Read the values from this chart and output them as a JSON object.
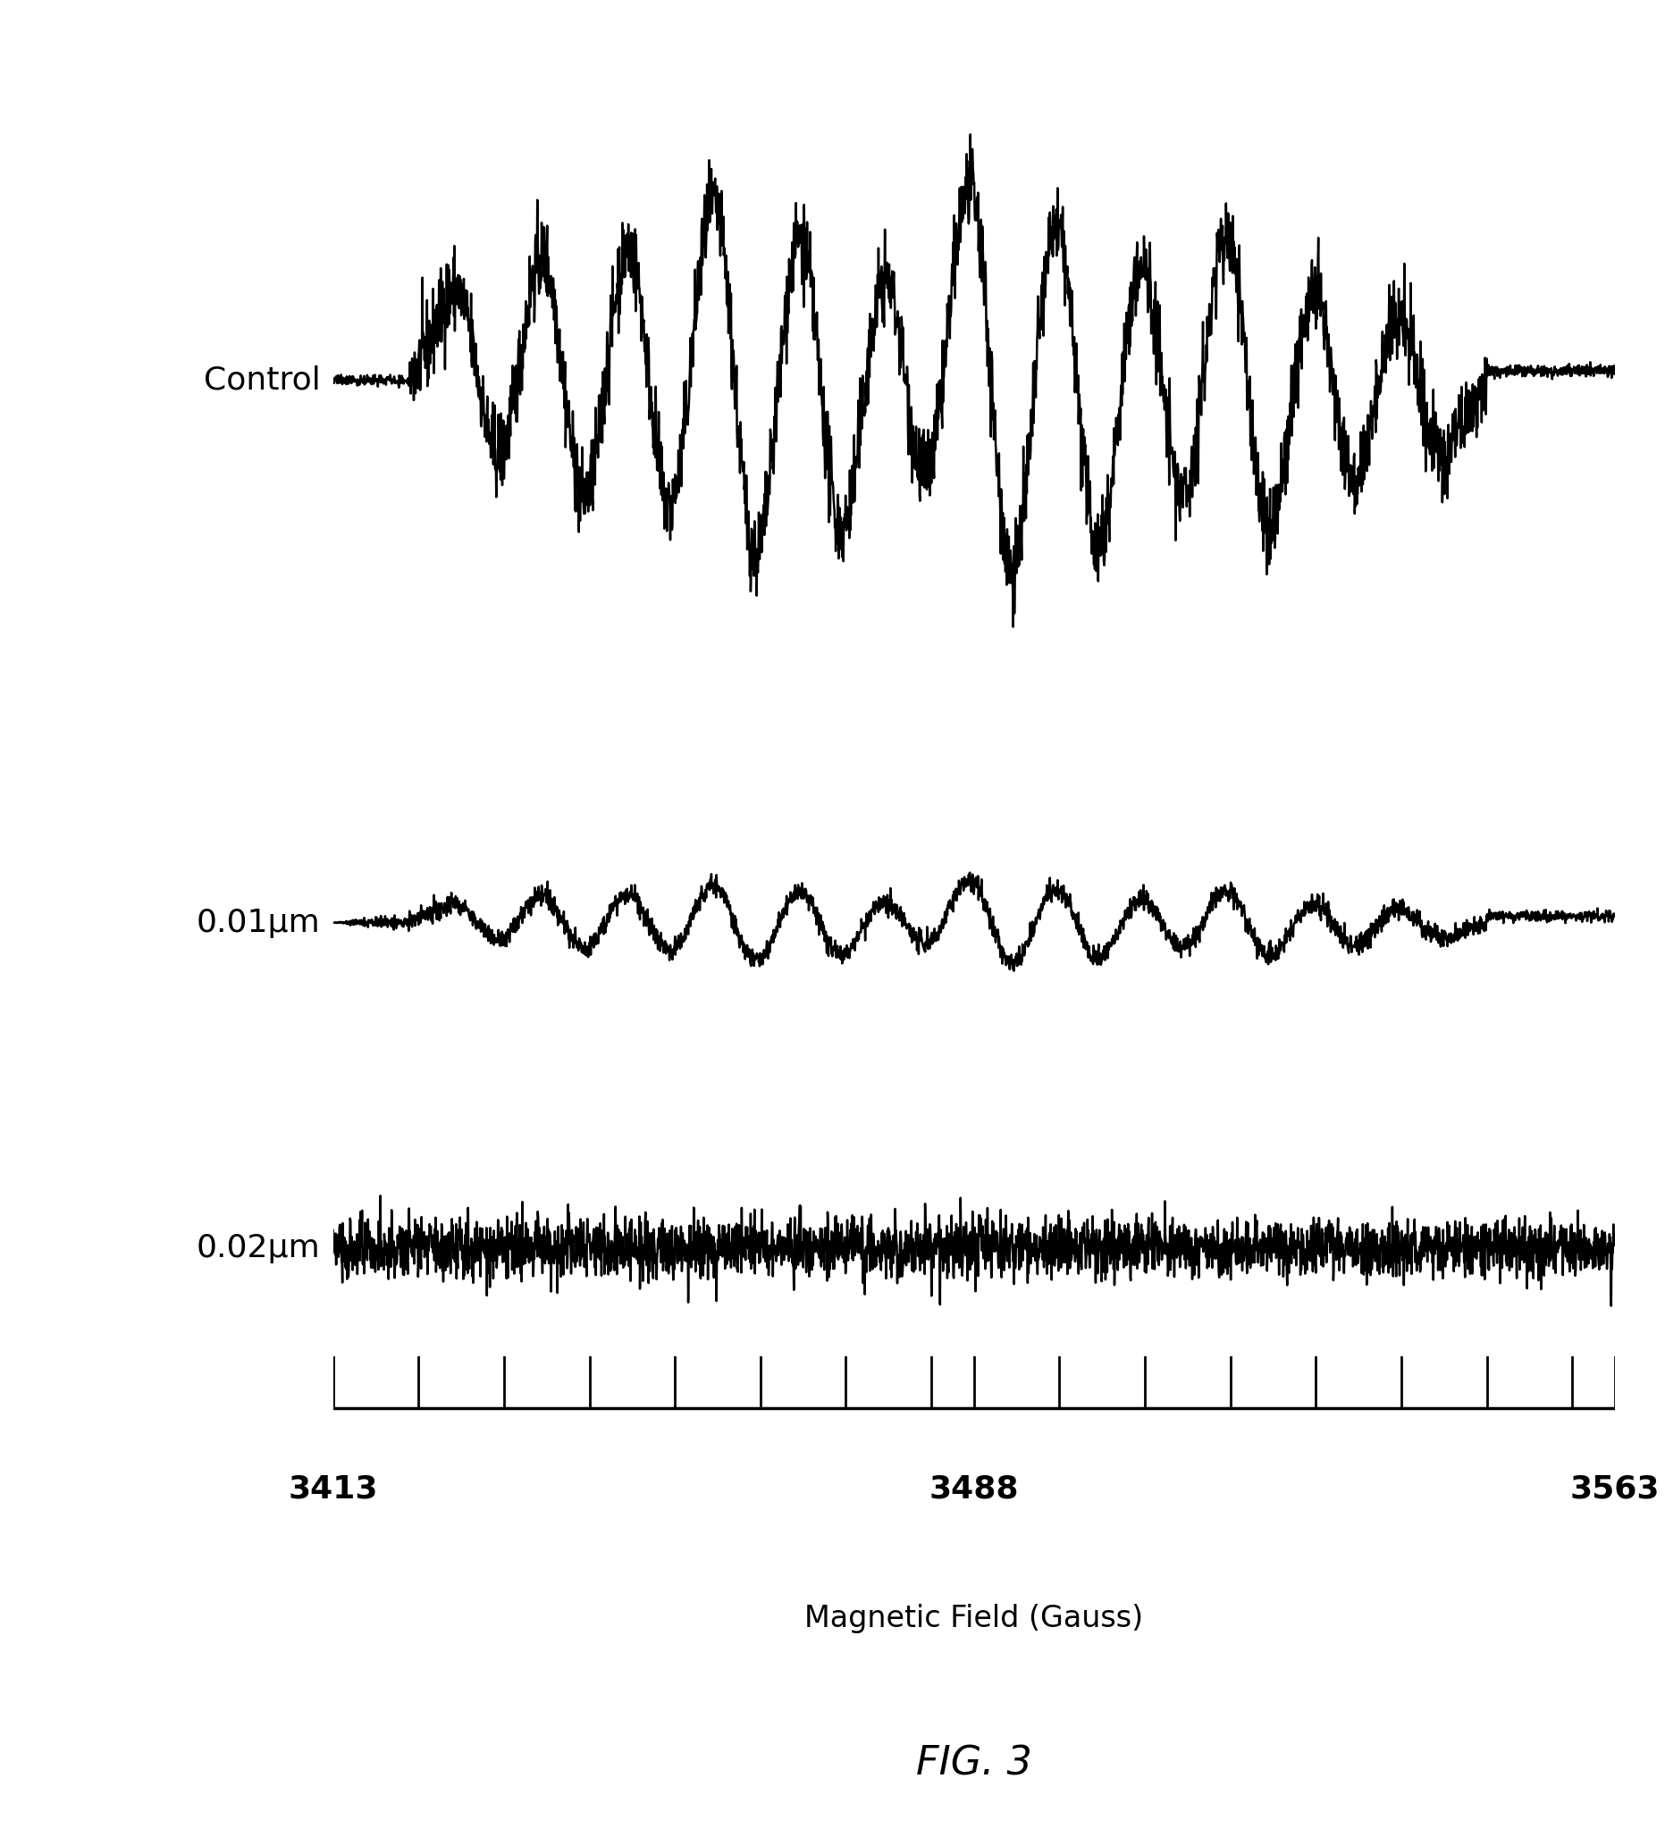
{
  "title": "FIG. 3",
  "xlabel": "Magnetic Field (Gauss)",
  "x_min": 3413,
  "x_max": 3563,
  "x_labels": [
    3413,
    3488,
    3563
  ],
  "tick_values": [
    3413,
    3423,
    3433,
    3443,
    3453,
    3463,
    3473,
    3483,
    3488,
    3498,
    3508,
    3518,
    3528,
    3538,
    3548,
    3558,
    3563
  ],
  "labels": [
    "Control",
    "0.01μm",
    "0.02μm"
  ],
  "label_fontsize": 26,
  "title_fontsize": 32,
  "xlabel_fontsize": 24,
  "background_color": "#ffffff",
  "line_color": "#000000",
  "line_width": 1.8
}
